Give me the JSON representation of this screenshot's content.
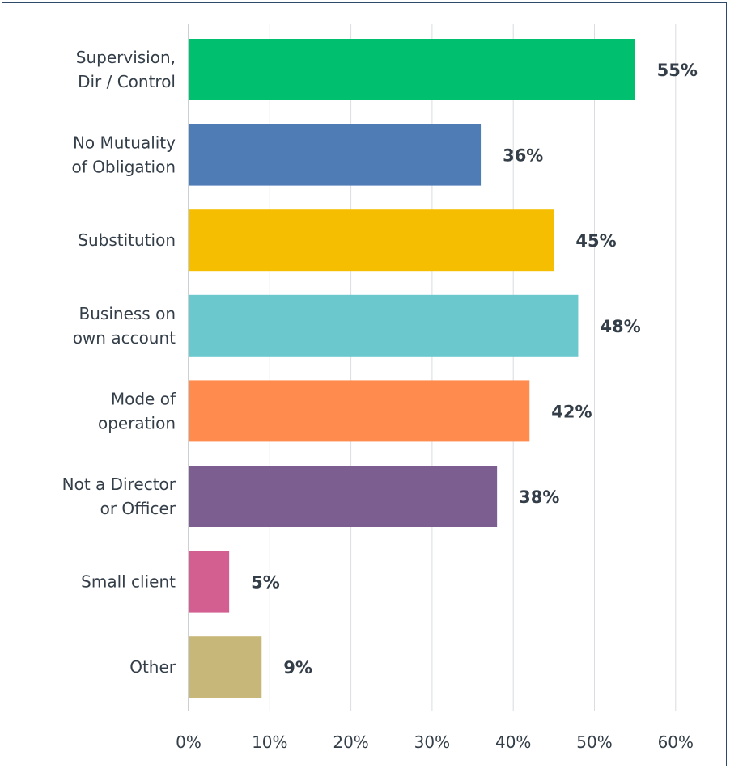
{
  "chart_data": {
    "type": "bar",
    "orientation": "horizontal",
    "categories": [
      [
        "Supervision,",
        "Dir / Control"
      ],
      [
        "No Mutuality",
        "of Obligation"
      ],
      [
        "Substitution"
      ],
      [
        "Business on",
        "own account"
      ],
      [
        "Mode of",
        "operation"
      ],
      [
        "Not a Director",
        "or Officer"
      ],
      [
        "Small client"
      ],
      [
        "Other"
      ]
    ],
    "values": [
      55,
      36,
      45,
      48,
      42,
      38,
      5,
      9
    ],
    "value_labels": [
      "55%",
      "36%",
      "45%",
      "48%",
      "42%",
      "38%",
      "5%",
      "9%"
    ],
    "colors": [
      "#00bf6f",
      "#507cb6",
      "#f5be00",
      "#6bc8cd",
      "#ff8b4f",
      "#7d5e90",
      "#d25f90",
      "#c7b879"
    ],
    "xlim": [
      0,
      65
    ],
    "xticks": [
      0,
      10,
      20,
      30,
      40,
      50,
      60
    ],
    "xtick_labels": [
      "0%",
      "10%",
      "20%",
      "30%",
      "40%",
      "50%",
      "60%"
    ],
    "grid": true,
    "title": "",
    "xlabel": "",
    "ylabel": ""
  }
}
